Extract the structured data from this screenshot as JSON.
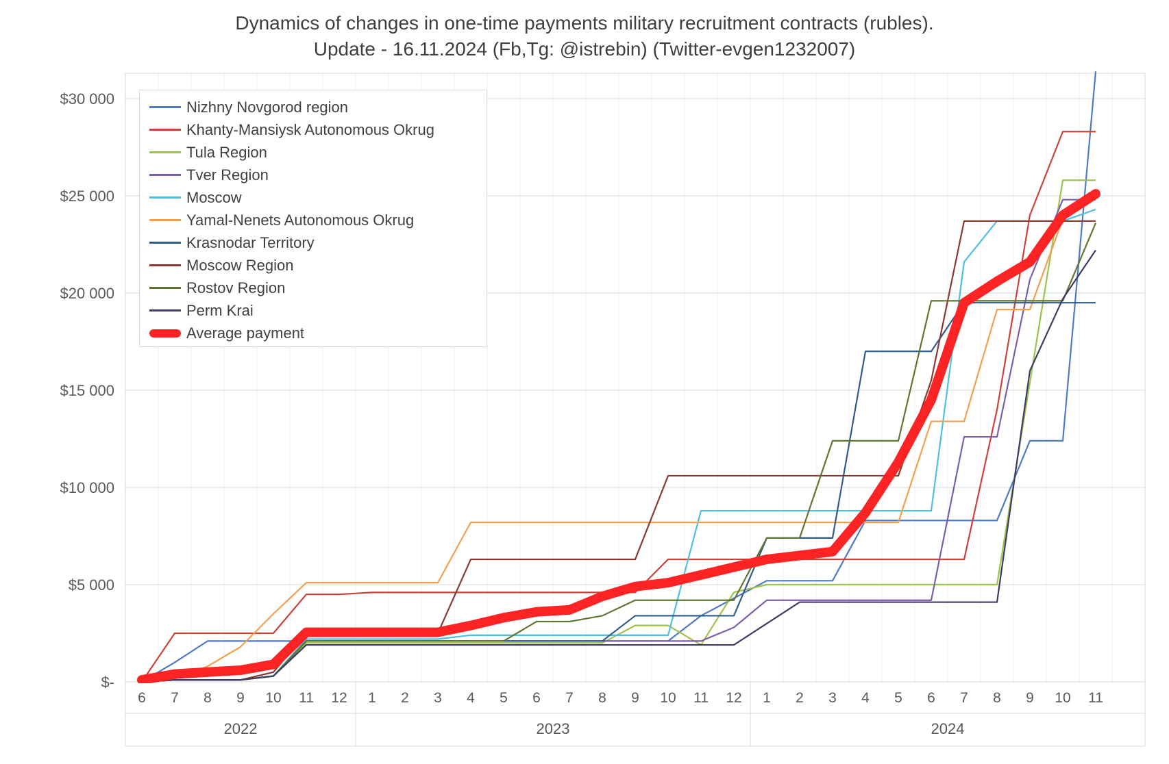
{
  "title": {
    "line1": "Dynamics of changes in one-time payments military recruitment contracts (rubles).",
    "line2": "Update - 16.11.2024 (Fb,Tg: @istrebin) (Twitter-evgen1232007)"
  },
  "chart_data": {
    "type": "line",
    "title": "Dynamics of changes in one-time payments military recruitment contracts (rubles).",
    "subtitle": "Update - 16.11.2024 (Fb,Tg: @istrebin) (Twitter-evgen1232007)",
    "grid": true,
    "legend_position": "top-left",
    "ylim": [
      0,
      31500
    ],
    "y_axis": {
      "tick_values": [
        0,
        5000,
        10000,
        15000,
        20000,
        25000,
        30000
      ],
      "tick_labels": [
        "$-",
        "$5 000",
        "$10 000",
        "$15 000",
        "$20 000",
        "$25 000",
        "$30 000"
      ]
    },
    "x_axis": {
      "month_labels": [
        "6",
        "7",
        "8",
        "9",
        "10",
        "11",
        "12",
        "1",
        "2",
        "3",
        "4",
        "5",
        "6",
        "7",
        "8",
        "9",
        "10",
        "11",
        "12",
        "1",
        "2",
        "3",
        "4",
        "5",
        "6",
        "7",
        "8",
        "9",
        "10",
        "11"
      ],
      "year_groups": [
        {
          "label": "2022",
          "start": 0,
          "count": 7
        },
        {
          "label": "2023",
          "start": 7,
          "count": 12
        },
        {
          "label": "2024",
          "start": 19,
          "count": 11
        }
      ]
    },
    "series": [
      {
        "name": "Nizhny Novgorod region",
        "color": "#4e79c4",
        "thick": false,
        "values": [
          0,
          1000,
          2100,
          2100,
          2100,
          2100,
          2100,
          2100,
          2100,
          2100,
          2100,
          2100,
          2100,
          2100,
          2100,
          2100,
          2100,
          3400,
          4300,
          5200,
          5200,
          5200,
          8300,
          8300,
          8300,
          8300,
          8300,
          12400,
          12400,
          31400
        ]
      },
      {
        "name": "Khanty-Mansiysk Autonomous Okrug",
        "color": "#c8443b",
        "thick": false,
        "values": [
          0,
          2500,
          2500,
          2500,
          2500,
          4500,
          4500,
          4600,
          4600,
          4600,
          4600,
          4600,
          4600,
          4600,
          4600,
          4600,
          6300,
          6300,
          6300,
          6300,
          6300,
          6300,
          6300,
          6300,
          6300,
          6300,
          14000,
          24000,
          28300,
          28300
        ]
      },
      {
        "name": "Tula Region",
        "color": "#9cc34b",
        "thick": false,
        "values": [
          0,
          100,
          100,
          100,
          300,
          2000,
          2000,
          2000,
          2000,
          2000,
          2000,
          2000,
          2000,
          2000,
          2000,
          2900,
          2900,
          1900,
          4600,
          5000,
          5000,
          5000,
          5000,
          5000,
          5000,
          5000,
          5000,
          15400,
          25800,
          25800
        ]
      },
      {
        "name": "Tver Region",
        "color": "#7b5ea7",
        "thick": false,
        "values": [
          0,
          100,
          100,
          100,
          300,
          2100,
          2100,
          2100,
          2100,
          2100,
          2100,
          2100,
          2100,
          2100,
          2100,
          2100,
          2100,
          2100,
          2800,
          4200,
          4200,
          4200,
          4200,
          4200,
          4200,
          12600,
          12600,
          20700,
          24800,
          24800
        ]
      },
      {
        "name": "Moscow",
        "color": "#4fbfdf",
        "thick": false,
        "values": [
          0,
          100,
          100,
          100,
          300,
          2200,
          2200,
          2200,
          2200,
          2200,
          2400,
          2400,
          2400,
          2400,
          2400,
          2400,
          2400,
          8800,
          8800,
          8800,
          8800,
          8800,
          8800,
          8800,
          8800,
          21600,
          23700,
          23700,
          23700,
          24300
        ]
      },
      {
        "name": "Yamal-Nenets Autonomous Okrug",
        "color": "#f1a04c",
        "thick": false,
        "values": [
          150,
          150,
          800,
          1800,
          3500,
          5100,
          5100,
          5100,
          5100,
          5100,
          8200,
          8200,
          8200,
          8200,
          8200,
          8200,
          8200,
          8200,
          8200,
          8200,
          8200,
          8200,
          8200,
          8200,
          13400,
          13400,
          19150,
          19150,
          23800,
          24900
        ]
      },
      {
        "name": "Krasnodar Territory",
        "color": "#2f5b8a",
        "thick": false,
        "values": [
          0,
          100,
          100,
          100,
          300,
          2100,
          2100,
          2100,
          2100,
          2100,
          2100,
          2100,
          2100,
          2100,
          2100,
          3400,
          3400,
          3400,
          3400,
          7400,
          7400,
          7400,
          17000,
          17000,
          17000,
          19500,
          19500,
          19500,
          19500,
          19500
        ]
      },
      {
        "name": "Moscow Region",
        "color": "#8a3832",
        "thick": false,
        "values": [
          0,
          100,
          100,
          100,
          500,
          2500,
          2500,
          2500,
          2500,
          2500,
          6300,
          6300,
          6300,
          6300,
          6300,
          6300,
          10600,
          10600,
          10600,
          10600,
          10600,
          10600,
          10600,
          10600,
          15500,
          23700,
          23700,
          23700,
          23700,
          23700
        ]
      },
      {
        "name": "Rostov Region",
        "color": "#5f7530",
        "thick": false,
        "values": [
          0,
          100,
          100,
          100,
          300,
          2100,
          2100,
          2100,
          2100,
          2100,
          2100,
          2100,
          3100,
          3100,
          3400,
          4200,
          4200,
          4200,
          4200,
          7400,
          7400,
          12400,
          12400,
          12400,
          19600,
          19600,
          19600,
          19600,
          19600,
          23600
        ]
      },
      {
        "name": "Perm Krai",
        "color": "#3e3a63",
        "thick": false,
        "values": [
          0,
          100,
          100,
          100,
          300,
          1900,
          1900,
          1900,
          1900,
          1900,
          1900,
          1900,
          1900,
          1900,
          1900,
          1900,
          1900,
          1900,
          1900,
          3000,
          4100,
          4100,
          4100,
          4100,
          4100,
          4100,
          4100,
          16000,
          19700,
          22200
        ]
      },
      {
        "name": "Average payment",
        "color": "#fb2323",
        "thick": true,
        "values": [
          100,
          400,
          500,
          600,
          900,
          2550,
          2550,
          2550,
          2550,
          2550,
          2900,
          3300,
          3600,
          3700,
          4400,
          4900,
          5100,
          5500,
          5900,
          6300,
          6500,
          6700,
          8700,
          11300,
          14500,
          19500,
          20600,
          21600,
          24000,
          25100
        ]
      }
    ]
  },
  "layout_colors": {
    "grid_major": "#d9d9d9",
    "grid_minor": "#efefef",
    "axis_text": "#595959",
    "title_text": "#3f3f3f"
  }
}
